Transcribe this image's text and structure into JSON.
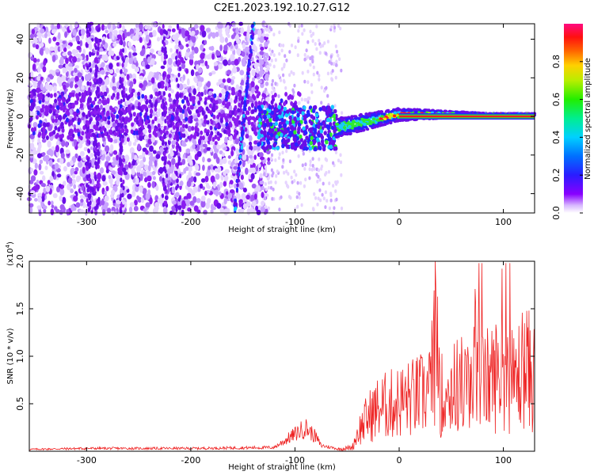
{
  "title": "C2E1.2023.192.10.27.G12",
  "chart_data": [
    {
      "type": "heatmap",
      "xlabel": "Height of straight line (km)",
      "ylabel": "Frequency (Hz)",
      "xlim": [
        -355,
        130
      ],
      "ylim": [
        -50,
        48
      ],
      "xticks": [
        -300,
        -200,
        -100,
        0,
        100
      ],
      "yticks": [
        -40,
        -20,
        0,
        20,
        40
      ],
      "colorbar": {
        "label": "Normalized spectral amplitude",
        "range": [
          0.0,
          1.0
        ],
        "ticks": [
          "0.0",
          "0.2",
          "0.4",
          "0.6",
          "0.8"
        ],
        "tick_values": [
          0.0,
          0.2,
          0.4,
          0.6,
          0.8
        ]
      },
      "features": {
        "streak_x_top": -140,
        "streak_x_bottom": -158,
        "ridge_x_start": -130,
        "ridge_x_end": 130,
        "ridge_freq": 0
      }
    },
    {
      "type": "line",
      "xlabel": "Height of straight line (km)",
      "ylabel": "SNR (10 * v/v)",
      "scale_label": "(x10",
      "scale_exp": "4",
      "xlim": [
        -355,
        130
      ],
      "ylim": [
        0,
        2.0
      ],
      "xticks": [
        -300,
        -200,
        -100,
        0,
        100
      ],
      "yticks": [
        0.5,
        1.0,
        1.5,
        2.0
      ],
      "ytick_labels": [
        "0.5",
        "1.0",
        "1.5",
        "2.0"
      ],
      "color": "#ee2222",
      "x": [
        -355,
        -300,
        -200,
        -120,
        -100,
        -90,
        -80,
        -75,
        -60,
        -45,
        -40,
        -30,
        -20,
        -10,
        0,
        10,
        20,
        30,
        36,
        40,
        50,
        60,
        70,
        75,
        80,
        90,
        100,
        110,
        120,
        130
      ],
      "y": [
        0.02,
        0.03,
        0.03,
        0.04,
        0.18,
        0.25,
        0.15,
        0.06,
        0.03,
        0.06,
        0.3,
        0.55,
        0.7,
        0.75,
        0.8,
        0.85,
        0.9,
        1.0,
        2.0,
        0.9,
        1.0,
        1.1,
        1.0,
        1.9,
        1.1,
        1.2,
        1.3,
        1.1,
        1.4,
        1.2
      ]
    }
  ]
}
